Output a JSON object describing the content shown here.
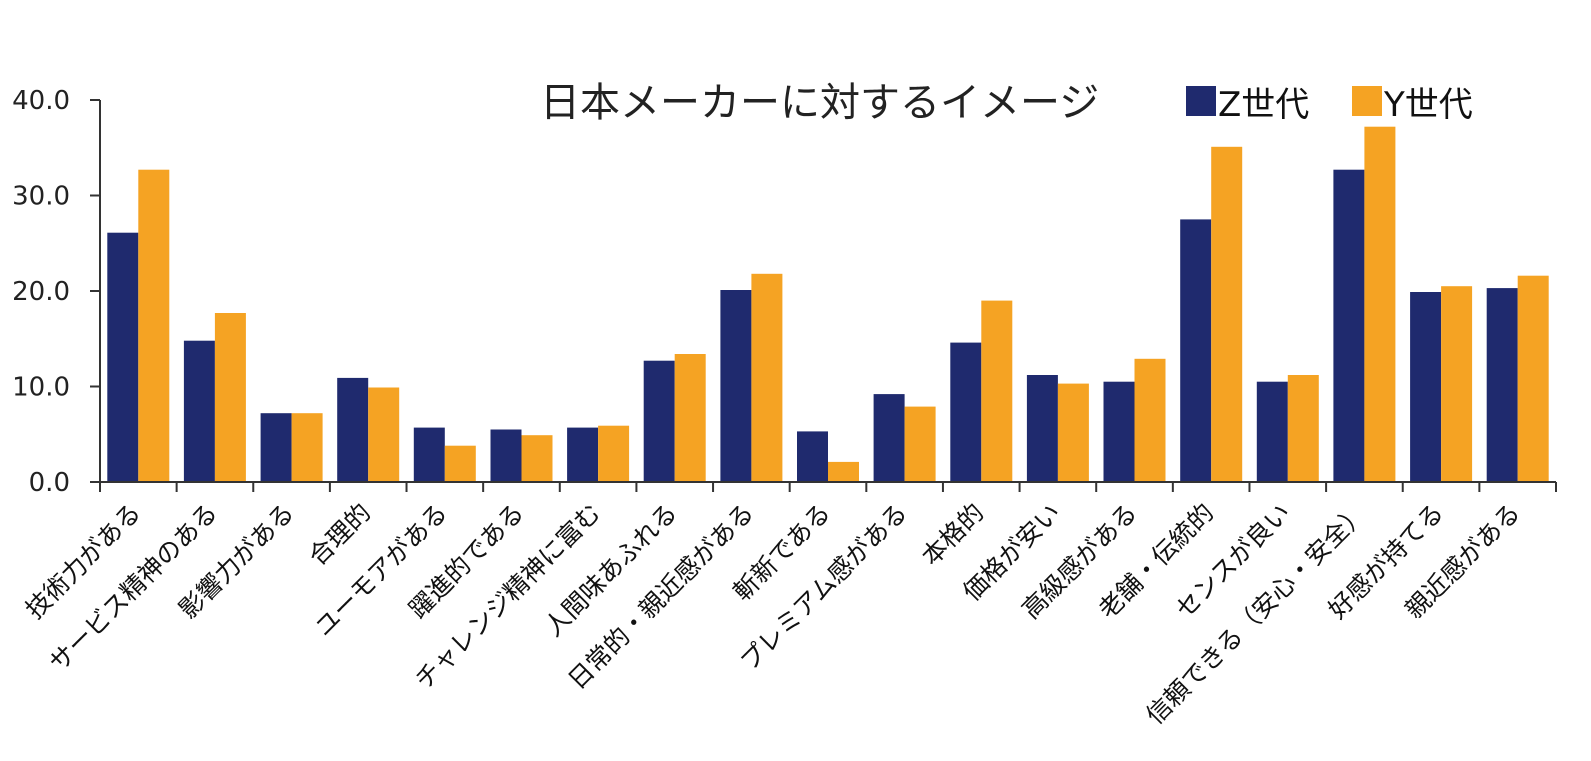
{
  "chart_data": {
    "type": "bar",
    "title": "日本メーカーに対するイメージ",
    "xlabel": "",
    "ylabel": "",
    "ylim": [
      0,
      40
    ],
    "yticks": [
      "0.0",
      "10.0",
      "20.0",
      "30.0",
      "40.0"
    ],
    "ytick_values": [
      0,
      10,
      20,
      30,
      40
    ],
    "legend_position": "top-right",
    "categories": [
      "技術力がある",
      "サービス精神のある",
      "影響力がある",
      "合理的",
      "ユーモアがある",
      "躍進的である",
      "チャレンジ精神に富む",
      "人間味あふれる",
      "日常的・親近感がある",
      "斬新である",
      "プレミアム感がある",
      "本格的",
      "価格が安い",
      "高級感がある",
      "老舗・伝統的",
      "センスが良い",
      "信頼できる（安心・安全）",
      "好感が持てる",
      "親近感がある"
    ],
    "series": [
      {
        "name": "Z世代",
        "color": "#1f2a6e",
        "values": [
          26.1,
          14.8,
          7.2,
          10.9,
          5.7,
          5.5,
          5.7,
          12.7,
          20.1,
          5.3,
          9.2,
          14.6,
          11.2,
          10.5,
          27.5,
          10.5,
          32.7,
          19.9,
          20.3
        ]
      },
      {
        "name": "Y世代",
        "color": "#f5a323",
        "values": [
          32.7,
          17.7,
          7.2,
          9.9,
          3.8,
          4.9,
          5.9,
          13.4,
          21.8,
          2.1,
          7.9,
          19.0,
          10.3,
          12.9,
          35.1,
          11.2,
          37.2,
          20.5,
          21.6
        ]
      }
    ]
  }
}
